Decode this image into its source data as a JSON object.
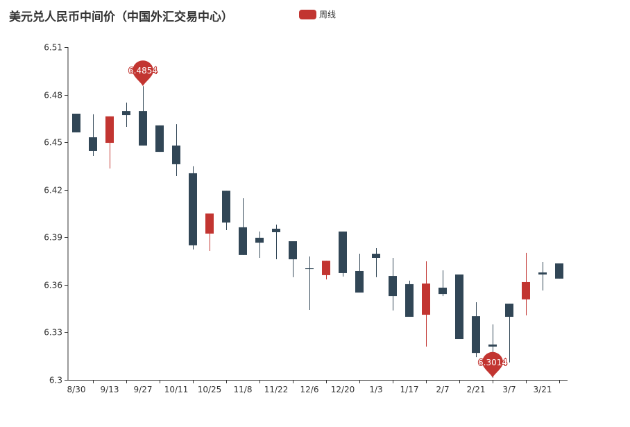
{
  "chart_data": {
    "type": "candlestick",
    "title": "美元兑人民币中间价（中国外汇交易中心）",
    "legend": [
      "周线"
    ],
    "legend_placement": "top-center",
    "xlabel": "",
    "ylabel": "",
    "ylim": [
      6.3,
      6.51
    ],
    "y_ticks": [
      "6.3",
      "6.33",
      "6.36",
      "6.39",
      "6.42",
      "6.45",
      "6.48",
      "6.51"
    ],
    "x_tick_labels": [
      "8/30",
      "9/13",
      "9/27",
      "10/11",
      "10/25",
      "11/8",
      "11/22",
      "12/6",
      "12/20",
      "1/3",
      "1/17",
      "2/7",
      "2/21",
      "3/7",
      "3/21"
    ],
    "ohlc_fields": [
      "open",
      "close",
      "low",
      "high"
    ],
    "candles": [
      [
        6.468,
        6.4562,
        6.4562,
        6.468
      ],
      [
        6.4531,
        6.4444,
        6.4413,
        6.4676
      ],
      [
        6.4496,
        6.4663,
        6.4334,
        6.4663
      ],
      [
        6.4697,
        6.4671,
        6.4597,
        6.475
      ],
      [
        6.4697,
        6.4479,
        6.4479,
        6.4854
      ],
      [
        6.4606,
        6.4439,
        6.4439,
        6.4606
      ],
      [
        6.4479,
        6.4361,
        6.4286,
        6.4614
      ],
      [
        6.4304,
        6.3849,
        6.3823,
        6.4348
      ],
      [
        6.3923,
        6.405,
        6.3814,
        6.405
      ],
      [
        6.4194,
        6.3993,
        6.3945,
        6.4194
      ],
      [
        6.3963,
        6.3788,
        6.3788,
        6.4146
      ],
      [
        6.3897,
        6.3866,
        6.377,
        6.3936
      ],
      [
        6.3954,
        6.3932,
        6.3761,
        6.398
      ],
      [
        6.3875,
        6.3761,
        6.3648,
        6.3875
      ],
      [
        6.3704,
        6.3704,
        6.3442,
        6.3779
      ],
      [
        6.3661,
        6.3752,
        6.3634,
        6.3752
      ],
      [
        6.3936,
        6.3674,
        6.3652,
        6.3936
      ],
      [
        6.3687,
        6.3551,
        6.3551,
        6.3796
      ],
      [
        6.3796,
        6.377,
        6.3648,
        6.3831
      ],
      [
        6.3656,
        6.3529,
        6.3438,
        6.377
      ],
      [
        6.3604,
        6.3398,
        6.3398,
        6.3626
      ],
      [
        6.3411,
        6.3608,
        6.321,
        6.3748
      ],
      [
        6.3582,
        6.3542,
        6.3529,
        6.3691
      ],
      [
        6.3665,
        6.3258,
        6.3258,
        6.3665
      ],
      [
        6.3402,
        6.317,
        6.3144,
        6.349
      ],
      [
        6.3223,
        6.321,
        6.3014,
        6.335
      ],
      [
        6.3481,
        6.3398,
        6.311,
        6.3481
      ],
      [
        6.3508,
        6.3617,
        6.3407,
        6.3801
      ],
      [
        6.3678,
        6.3665,
        6.3564,
        6.3744
      ],
      [
        6.3735,
        6.3639,
        6.3639,
        6.3735
      ]
    ],
    "mark_points": [
      {
        "type": "max",
        "candle_index": 4,
        "value": 6.4854,
        "label": "6.4854"
      },
      {
        "type": "min",
        "candle_index": 25,
        "value": 6.3014,
        "label": "6.3014"
      }
    ],
    "colors": {
      "up": "#c23531",
      "down": "#314656",
      "axis": "#333333"
    }
  }
}
